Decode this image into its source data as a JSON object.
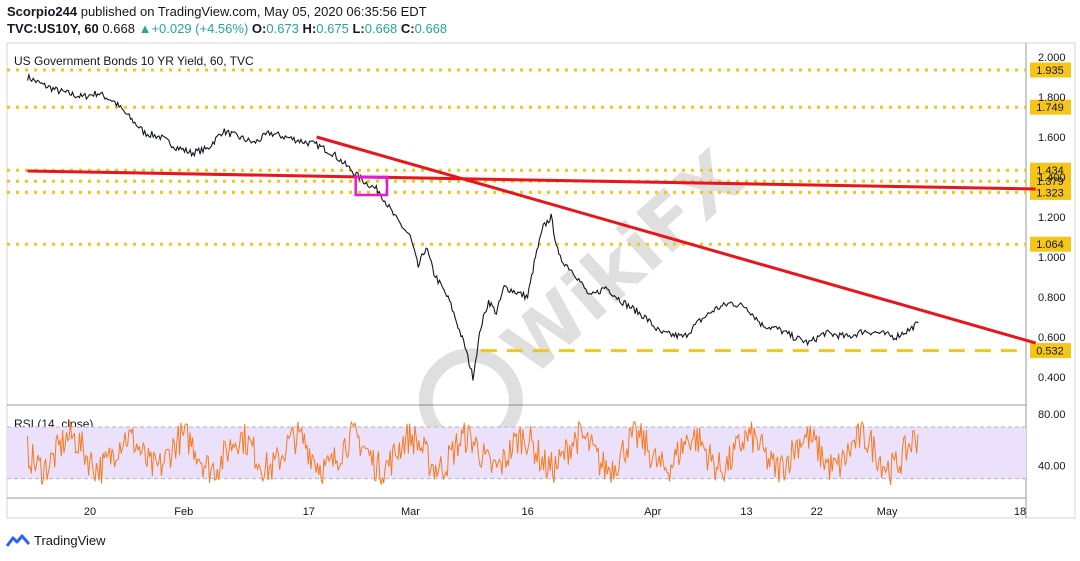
{
  "header": {
    "author": "Scorpio244",
    "published_text": "published on TradingView.com, May 05, 2020 06:35:56 EDT",
    "symbol": "TVC:US10Y, 60",
    "last": "0.668",
    "change": "+0.029 (+4.56%)",
    "o_label": "O:",
    "o_value": "0.673",
    "h_label": "H:",
    "h_value": "0.675",
    "l_label": "L:",
    "l_value": "0.668",
    "c_label": "C:",
    "c_value": "0.668",
    "up_color": "#26a69a"
  },
  "chart_data": [
    {
      "type": "line",
      "title": "US Government Bonds 10 YR Yield, 60, TVC",
      "ylim": [
        0.26,
        2.07
      ],
      "y_ticks": [
        0.4,
        0.6,
        0.8,
        1.0,
        1.2,
        1.4,
        1.6,
        1.8,
        2.0
      ],
      "y_tick_labels": [
        "0.400",
        "0.600",
        "0.800",
        "1.000",
        "1.200",
        "1.400",
        "1.600",
        "1.800",
        "2.000"
      ],
      "x_tick_labels": [
        "20",
        "Feb",
        "17",
        "Mar",
        "16",
        "Apr",
        "13",
        "22",
        "May",
        "18"
      ],
      "price_path": [
        [
          "2020-01-12",
          1.9
        ],
        [
          "2020-01-14",
          1.86
        ],
        [
          "2020-01-16",
          1.83
        ],
        [
          "2020-01-19",
          1.8
        ],
        [
          "2020-01-21",
          1.82
        ],
        [
          "2020-01-23",
          1.78
        ],
        [
          "2020-01-25",
          1.7
        ],
        [
          "2020-01-27",
          1.62
        ],
        [
          "2020-01-29",
          1.6
        ],
        [
          "2020-01-31",
          1.55
        ],
        [
          "2020-02-02",
          1.52
        ],
        [
          "2020-02-04",
          1.54
        ],
        [
          "2020-02-06",
          1.63
        ],
        [
          "2020-02-08",
          1.6
        ],
        [
          "2020-02-10",
          1.57
        ],
        [
          "2020-02-12",
          1.62
        ],
        [
          "2020-02-14",
          1.6
        ],
        [
          "2020-02-16",
          1.58
        ],
        [
          "2020-02-18",
          1.56
        ],
        [
          "2020-02-20",
          1.52
        ],
        [
          "2020-02-22",
          1.45
        ],
        [
          "2020-02-24",
          1.38
        ],
        [
          "2020-02-26",
          1.33
        ],
        [
          "2020-02-28",
          1.2
        ],
        [
          "2020-03-01",
          1.1
        ],
        [
          "2020-03-02",
          0.95
        ],
        [
          "2020-03-03",
          1.05
        ],
        [
          "2020-03-04",
          0.92
        ],
        [
          "2020-03-06",
          0.78
        ],
        [
          "2020-03-08",
          0.55
        ],
        [
          "2020-03-09",
          0.4
        ],
        [
          "2020-03-10",
          0.65
        ],
        [
          "2020-03-11",
          0.78
        ],
        [
          "2020-03-12",
          0.72
        ],
        [
          "2020-03-13",
          0.85
        ],
        [
          "2020-03-16",
          0.8
        ],
        [
          "2020-03-17",
          1.0
        ],
        [
          "2020-03-18",
          1.15
        ],
        [
          "2020-03-19",
          1.2
        ],
        [
          "2020-03-20",
          1.0
        ],
        [
          "2020-03-22",
          0.92
        ],
        [
          "2020-03-24",
          0.8
        ],
        [
          "2020-03-26",
          0.85
        ],
        [
          "2020-03-28",
          0.78
        ],
        [
          "2020-03-31",
          0.7
        ],
        [
          "2020-04-02",
          0.62
        ],
        [
          "2020-04-05",
          0.6
        ],
        [
          "2020-04-07",
          0.68
        ],
        [
          "2020-04-09",
          0.74
        ],
        [
          "2020-04-11",
          0.77
        ],
        [
          "2020-04-13",
          0.75
        ],
        [
          "2020-04-15",
          0.66
        ],
        [
          "2020-04-17",
          0.64
        ],
        [
          "2020-04-19",
          0.6
        ],
        [
          "2020-04-21",
          0.57
        ],
        [
          "2020-04-23",
          0.62
        ],
        [
          "2020-04-26",
          0.6
        ],
        [
          "2020-04-28",
          0.63
        ],
        [
          "2020-04-30",
          0.62
        ],
        [
          "2020-05-02",
          0.6
        ],
        [
          "2020-05-04",
          0.64
        ],
        [
          "2020-05-05",
          0.67
        ]
      ],
      "horizontal_levels": [
        {
          "value": 1.935,
          "label": "1.935"
        },
        {
          "value": 1.749,
          "label": "1.749"
        },
        {
          "value": 1.434,
          "label": "1.434"
        },
        {
          "value": 1.379,
          "label": "1.379"
        },
        {
          "value": 1.323,
          "label": "1.323"
        },
        {
          "value": 1.064,
          "label": "1.064"
        }
      ],
      "support_level": {
        "value": 0.532,
        "label": "0.532"
      },
      "trendlines": [
        {
          "from": [
            "2020-01-12",
            1.43
          ],
          "to": [
            "2020-05-20",
            1.34
          ]
        },
        {
          "from": [
            "2020-02-18",
            1.6
          ],
          "to": [
            "2020-05-20",
            0.57
          ]
        }
      ],
      "highlight_box": {
        "x": [
          "2020-02-23",
          "2020-02-27"
        ],
        "y": [
          1.31,
          1.4
        ]
      },
      "line_color": "#131722",
      "level_color": "#f5c518",
      "trendline_color": "#e8151b",
      "box_color": "#e31ad8",
      "label_box_color": "#f5c518"
    },
    {
      "type": "line",
      "title": "RSI (14, close)",
      "ylim": [
        15,
        87
      ],
      "y_ticks": [
        40,
        80
      ],
      "y_tick_labels": [
        "40.00",
        "80.00"
      ],
      "band": [
        30,
        70
      ],
      "line_color": "#f57c20",
      "band_color": "#ece1fb"
    }
  ],
  "watermark": {
    "text": "WikiFX"
  },
  "footer": {
    "brand": "TradingView"
  }
}
